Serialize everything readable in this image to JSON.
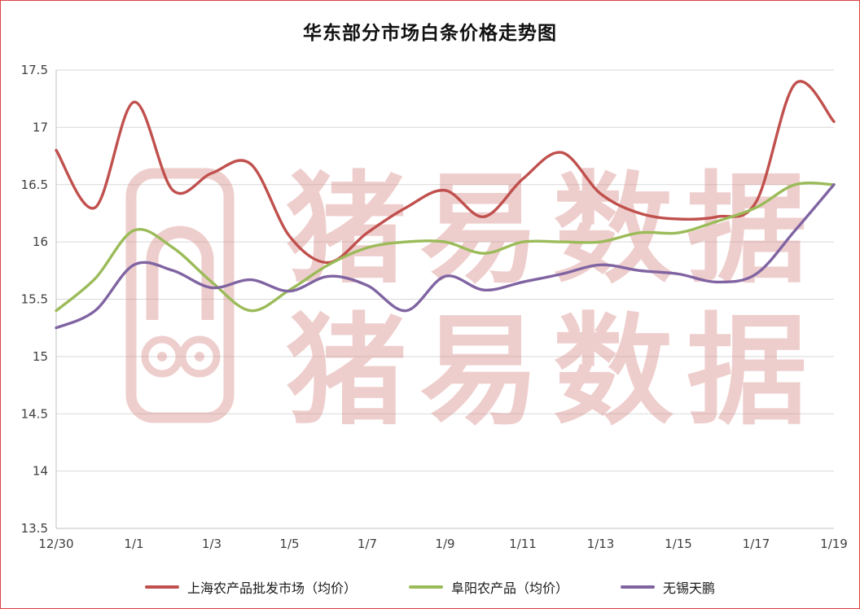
{
  "title": "华东部分市场白条价格走势图",
  "watermark": {
    "line1": "猪易数据",
    "line2": "猪易数据",
    "logo": "pig-snout-logo"
  },
  "colors": {
    "border": "#e04343",
    "grid": "#d9d9d9",
    "axis": "#c0c0c0",
    "tick_text": "#3f3f3f",
    "watermark": "#d4817e"
  },
  "chart_data": {
    "type": "line",
    "x": [
      "12/30",
      "12/31",
      "1/1",
      "1/2",
      "1/3",
      "1/4",
      "1/5",
      "1/6",
      "1/7",
      "1/8",
      "1/9",
      "1/10",
      "1/11",
      "1/12",
      "1/13",
      "1/14",
      "1/15",
      "1/16",
      "1/17",
      "1/18",
      "1/19"
    ],
    "x_tick_labels": [
      "12/30",
      "1/1",
      "1/3",
      "1/5",
      "1/7",
      "1/9",
      "1/11",
      "1/13",
      "1/15",
      "1/17",
      "1/19"
    ],
    "series": [
      {
        "name": "上海农产品批发市场（均价）",
        "color": "#c0504d",
        "values": [
          16.8,
          16.3,
          17.22,
          16.45,
          16.6,
          16.68,
          16.05,
          15.82,
          16.08,
          16.3,
          16.45,
          16.22,
          16.55,
          16.78,
          16.42,
          16.25,
          16.2,
          16.22,
          16.35,
          17.38,
          17.05
        ]
      },
      {
        "name": "阜阳农产品（均价）",
        "color": "#9bbb59",
        "values": [
          15.4,
          15.68,
          16.1,
          15.95,
          15.65,
          15.4,
          15.58,
          15.8,
          15.95,
          16.0,
          16.0,
          15.9,
          16.0,
          16.0,
          16.0,
          16.08,
          16.08,
          16.18,
          16.3,
          16.5,
          16.5
        ]
      },
      {
        "name": "无锡天鹏",
        "color": "#8064a2",
        "values": [
          15.25,
          15.4,
          15.8,
          15.75,
          15.6,
          15.67,
          15.57,
          15.7,
          15.62,
          15.4,
          15.7,
          15.58,
          15.65,
          15.72,
          15.8,
          15.75,
          15.72,
          15.65,
          15.72,
          16.1,
          16.5
        ]
      }
    ],
    "ylim": [
      13.5,
      17.5
    ],
    "ytick_step": 0.5,
    "grid": true,
    "legend_position": "bottom"
  }
}
